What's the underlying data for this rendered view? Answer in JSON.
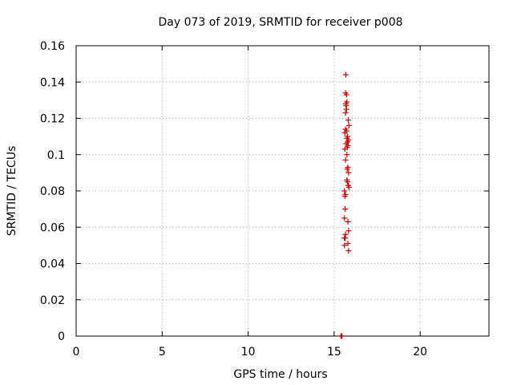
{
  "chart_data": {
    "type": "scatter",
    "title": "Day 073 of 2019, SRMTID for receiver p008",
    "xlabel": "GPS time / hours",
    "ylabel": "SRMTID / TECUs",
    "xlim": [
      0,
      24
    ],
    "ylim": [
      0,
      0.16
    ],
    "xticks": [
      0,
      5,
      10,
      15,
      20
    ],
    "xtick_labels": [
      "0",
      "5",
      "10",
      "15",
      "20"
    ],
    "yticks": [
      0,
      0.02,
      0.04,
      0.06,
      0.08,
      0.1,
      0.12,
      0.14,
      0.16
    ],
    "ytick_labels": [
      "0",
      "0.02",
      "0.04",
      "0.06",
      "0.08",
      "0.1",
      "0.12",
      "0.14",
      "0.16"
    ],
    "grid": true,
    "marker": "+",
    "series": [
      {
        "name": "p008",
        "color": "#cc0000",
        "points": [
          [
            15.4,
            0.0
          ],
          [
            15.42,
            0.0
          ],
          [
            15.45,
            0.0
          ],
          [
            15.68,
            0.144
          ],
          [
            15.66,
            0.134
          ],
          [
            15.72,
            0.133
          ],
          [
            15.68,
            0.128
          ],
          [
            15.74,
            0.129
          ],
          [
            15.7,
            0.127
          ],
          [
            15.72,
            0.125
          ],
          [
            15.66,
            0.123
          ],
          [
            15.82,
            0.119
          ],
          [
            15.86,
            0.116
          ],
          [
            15.66,
            0.114
          ],
          [
            15.72,
            0.113
          ],
          [
            15.62,
            0.112
          ],
          [
            15.78,
            0.11
          ],
          [
            15.74,
            0.109
          ],
          [
            15.84,
            0.108
          ],
          [
            15.78,
            0.107
          ],
          [
            15.7,
            0.106
          ],
          [
            15.8,
            0.105
          ],
          [
            15.76,
            0.104
          ],
          [
            15.62,
            0.103
          ],
          [
            15.74,
            0.1
          ],
          [
            15.66,
            0.097
          ],
          [
            15.8,
            0.093
          ],
          [
            15.76,
            0.092
          ],
          [
            15.84,
            0.09
          ],
          [
            15.74,
            0.086
          ],
          [
            15.78,
            0.085
          ],
          [
            15.82,
            0.083
          ],
          [
            15.86,
            0.082
          ],
          [
            15.6,
            0.08
          ],
          [
            15.66,
            0.078
          ],
          [
            15.62,
            0.077
          ],
          [
            15.64,
            0.07
          ],
          [
            15.6,
            0.065
          ],
          [
            15.8,
            0.063
          ],
          [
            15.84,
            0.058
          ],
          [
            15.66,
            0.056
          ],
          [
            15.6,
            0.054
          ],
          [
            15.64,
            0.054
          ],
          [
            15.6,
            0.05
          ],
          [
            15.8,
            0.051
          ],
          [
            15.84,
            0.047
          ]
        ]
      }
    ]
  }
}
